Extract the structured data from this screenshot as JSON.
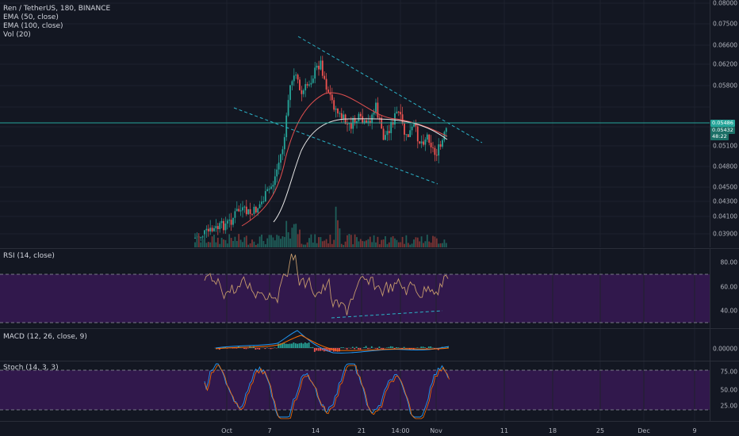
{
  "legend": {
    "symbol": "Ren / TetherUS, 180, BINANCE",
    "ema50": "EMA (50, close)",
    "ema100": "EMA (100, close)",
    "vol": "Vol (20)"
  },
  "price_axis": [
    "0.08000",
    "0.07500",
    "0.06600",
    "0.06200",
    "0.05800",
    "0.05100",
    "0.04800",
    "0.04500",
    "0.04300",
    "0.04100",
    "0.03900"
  ],
  "price_badges": [
    "0.05486",
    "0.05432",
    "48:22"
  ],
  "rsi": {
    "title": "RSI (14, close)",
    "ticks": [
      "80.00",
      "60.00",
      "40.00"
    ]
  },
  "macd": {
    "title": "MACD (12, 26, close, 9)",
    "ticks": [
      "0.00000"
    ]
  },
  "stoch": {
    "title": "Stoch (14, 3, 3)",
    "ticks": [
      "75.00",
      "50.00",
      "25.00"
    ]
  },
  "time_axis": [
    "Oct",
    "7",
    "14",
    "21",
    "14:00",
    "Nov",
    "11",
    "18",
    "25",
    "Dec",
    "9"
  ],
  "colors": {
    "background": "#131722",
    "up": "#26a69a",
    "down": "#ef5350",
    "ema50": "#e04f4f",
    "ema100": "#e6e6e6",
    "trendline": "#2bb3c8",
    "band": "#6a1b9a",
    "price_line": "#26a69a"
  }
}
